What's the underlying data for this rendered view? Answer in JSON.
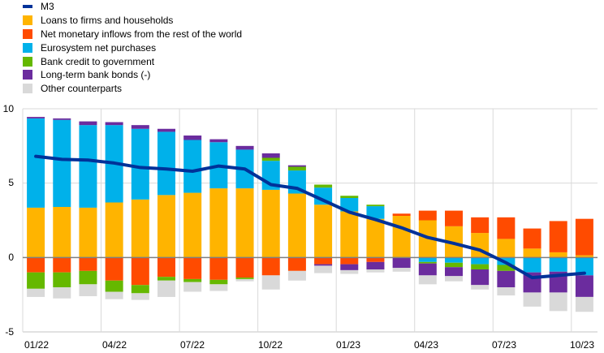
{
  "chart_data": {
    "type": "bar",
    "subtype": "stacked-bar-with-line",
    "title": "",
    "xlabel": "",
    "ylabel": "",
    "ylim": [
      -5,
      10
    ],
    "yticks": [
      10,
      5,
      0,
      -5
    ],
    "ytick_labels": [
      "10",
      "5",
      "0",
      "-5"
    ],
    "grid": true,
    "legend_position": "top-left",
    "xtick_labels": [
      "01/22",
      "04/22",
      "07/22",
      "10/22",
      "01/23",
      "04/23",
      "07/23",
      "10/23"
    ],
    "categories": [
      "01/22",
      "02/22",
      "03/22",
      "04/22",
      "05/22",
      "06/22",
      "07/22",
      "08/22",
      "09/22",
      "10/22",
      "11/22",
      "12/22",
      "01/23",
      "02/23",
      "03/23",
      "04/23",
      "05/23",
      "06/23",
      "07/23",
      "08/23",
      "09/23",
      "10/23"
    ],
    "series": [
      {
        "name": "Loans to firms and households",
        "color": "#FFB400",
        "values": [
          3.35,
          3.4,
          3.35,
          3.7,
          3.9,
          4.2,
          4.35,
          4.65,
          4.65,
          4.55,
          4.3,
          3.55,
          3.1,
          2.6,
          2.8,
          2.5,
          2.1,
          1.65,
          1.25,
          0.6,
          0.35,
          0.15
        ]
      },
      {
        "name": "Net monetary inflows from the rest of the world",
        "color": "#FF4B00",
        "values": [
          -1.0,
          -1.0,
          -0.9,
          -1.55,
          -1.85,
          -1.3,
          -1.45,
          -1.5,
          -1.35,
          -1.2,
          -0.9,
          -0.45,
          -0.45,
          -0.3,
          0.15,
          0.65,
          1.05,
          1.05,
          1.45,
          1.35,
          2.1,
          2.45
        ]
      },
      {
        "name": "Eurosystem net purchases",
        "color": "#00B1EA",
        "values": [
          6.0,
          5.85,
          5.55,
          5.2,
          4.75,
          4.25,
          3.55,
          3.1,
          2.6,
          1.95,
          1.55,
          1.15,
          0.9,
          0.85,
          0,
          -0.3,
          -0.35,
          -0.45,
          -0.5,
          -1.0,
          -0.95,
          -1.2
        ]
      },
      {
        "name": "Bank credit to government",
        "color": "#65B800",
        "values": [
          -1.1,
          -1.0,
          -0.9,
          -0.75,
          -0.55,
          -0.25,
          -0.2,
          -0.3,
          -0.1,
          0.2,
          0.25,
          0.2,
          0.15,
          0.1,
          0,
          -0.1,
          -0.3,
          -0.35,
          -0.4,
          0,
          0,
          0
        ]
      },
      {
        "name": "Long-term bank bonds (-)",
        "color": "#6B2C9E",
        "values": [
          0.1,
          0.1,
          0.25,
          0.2,
          0.25,
          0.2,
          0.3,
          0.2,
          0.25,
          0.3,
          0.1,
          -0.1,
          -0.4,
          -0.5,
          -0.7,
          -0.8,
          -0.6,
          -1.05,
          -1.1,
          -1.35,
          -1.4,
          -1.45
        ]
      },
      {
        "name": "Other counterparts",
        "color": "#D9D9D9",
        "values": [
          -0.55,
          -0.75,
          -0.8,
          -0.5,
          -0.45,
          -1.1,
          -0.65,
          -0.45,
          -0.15,
          -0.95,
          -0.65,
          -0.5,
          -0.25,
          -0.2,
          -0.25,
          -0.6,
          -0.35,
          -0.3,
          -0.55,
          -0.95,
          -1.25,
          -1.0
        ]
      }
    ],
    "line": {
      "name": "M3",
      "color": "#003299",
      "values": [
        6.8,
        6.6,
        6.55,
        6.35,
        6.05,
        5.95,
        5.8,
        6.15,
        5.95,
        4.9,
        4.65,
        3.85,
        3.05,
        2.55,
        2.0,
        1.35,
        0.95,
        0.5,
        -0.35,
        -1.35,
        -1.2,
        -1.05
      ]
    }
  },
  "legend": [
    {
      "label": "M3",
      "color": "#003299",
      "kind": "line"
    },
    {
      "label": "Loans to firms and households",
      "color": "#FFB400",
      "kind": "box"
    },
    {
      "label": "Net monetary inflows from the rest of the world",
      "color": "#FF4B00",
      "kind": "box"
    },
    {
      "label": "Eurosystem net purchases",
      "color": "#00B1EA",
      "kind": "box"
    },
    {
      "label": "Bank credit to government",
      "color": "#65B800",
      "kind": "box"
    },
    {
      "label": "Long-term bank bonds (-)",
      "color": "#6B2C9E",
      "kind": "box"
    },
    {
      "label": "Other counterparts",
      "color": "#D9D9D9",
      "kind": "box"
    }
  ]
}
